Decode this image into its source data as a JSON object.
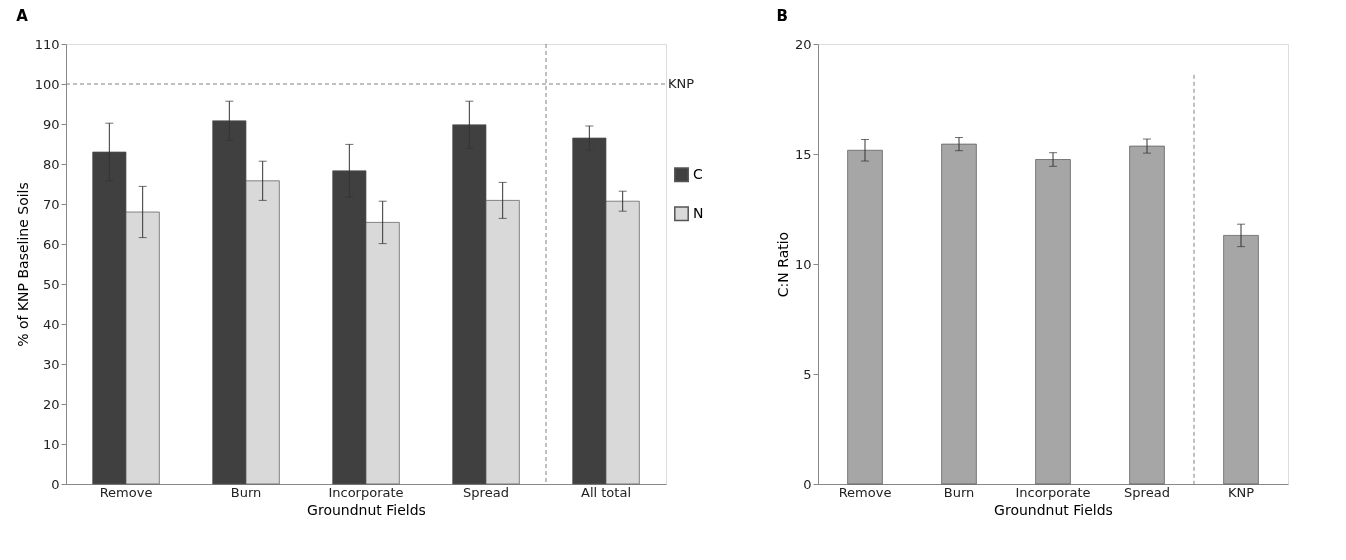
{
  "chart_data": [
    {
      "type": "bar",
      "title": "A",
      "xlabel": "Groundnut Fields",
      "ylabel": "% of KNP Baseline Soils",
      "categories": [
        "Remove",
        "Burn",
        "Incorporate",
        "Spread",
        "All total"
      ],
      "series": [
        {
          "name": "C",
          "color": "#404040",
          "values": [
            83,
            90.8,
            78.3,
            89.8,
            86.5
          ],
          "errors": [
            7.2,
            4.9,
            6.6,
            5.9,
            3
          ]
        },
        {
          "name": "N",
          "color": "#d9d9d9",
          "values": [
            68,
            75.8,
            65.4,
            70.9,
            70.7
          ],
          "errors": [
            6.4,
            4.9,
            5.3,
            4.5,
            2.5
          ]
        }
      ],
      "ylim": [
        0,
        110
      ],
      "yticks": [
        0,
        10,
        20,
        30,
        40,
        50,
        60,
        70,
        80,
        90,
        100,
        110
      ],
      "grid": false,
      "legend": "right",
      "ref_lines": [
        {
          "axis": "y",
          "value": 100,
          "label": "KNP",
          "line_style": "dashed",
          "color": "#808080"
        }
      ]
    },
    {
      "type": "bar",
      "title": "B",
      "xlabel": "Groundnut Fields",
      "ylabel": "C:N Ratio",
      "categories": [
        "Remove",
        "Burn",
        "Incorporate",
        "Spread",
        "KNP"
      ],
      "series": [
        {
          "color": "#a6a6a6",
          "values": [
            15.17,
            15.45,
            14.75,
            15.36,
            11.3
          ],
          "errors": [
            0.49,
            0.3,
            0.31,
            0.32,
            0.51
          ]
        }
      ],
      "ylim": [
        0,
        20
      ],
      "yticks": [
        0,
        5,
        10,
        15,
        20
      ],
      "grid": false,
      "legend": false
    }
  ]
}
